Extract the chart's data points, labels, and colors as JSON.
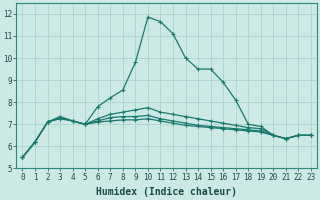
{
  "xlabel": "Humidex (Indice chaleur)",
  "background_color": "#cce9e5",
  "grid_color": "#aad4ce",
  "line_color": "#1a7a6e",
  "x_data": [
    0,
    1,
    2,
    3,
    4,
    5,
    6,
    7,
    8,
    9,
    10,
    11,
    12,
    13,
    14,
    15,
    16,
    17,
    18,
    19,
    20,
    21,
    22,
    23
  ],
  "series": [
    [
      5.5,
      6.2,
      7.1,
      7.3,
      7.15,
      7.0,
      7.8,
      8.2,
      8.55,
      9.8,
      11.85,
      11.65,
      11.1,
      10.0,
      9.5,
      9.5,
      8.9,
      8.1,
      7.0,
      6.9,
      6.5,
      6.35,
      6.5,
      6.5
    ],
    [
      5.5,
      6.2,
      7.1,
      7.35,
      7.15,
      7.0,
      7.25,
      7.45,
      7.55,
      7.65,
      7.75,
      7.55,
      7.45,
      7.35,
      7.25,
      7.15,
      7.05,
      6.95,
      6.85,
      6.8,
      6.5,
      6.35,
      6.5,
      6.5
    ],
    [
      5.5,
      6.2,
      7.1,
      7.3,
      7.15,
      7.0,
      7.15,
      7.3,
      7.35,
      7.35,
      7.4,
      7.25,
      7.15,
      7.05,
      6.95,
      6.9,
      6.85,
      6.8,
      6.75,
      6.7,
      6.5,
      6.35,
      6.5,
      6.5
    ],
    [
      5.5,
      6.2,
      7.1,
      7.25,
      7.15,
      7.0,
      7.1,
      7.15,
      7.2,
      7.2,
      7.25,
      7.15,
      7.05,
      6.95,
      6.9,
      6.85,
      6.8,
      6.75,
      6.7,
      6.65,
      6.5,
      6.35,
      6.5,
      6.5
    ]
  ],
  "ylim": [
    5,
    12.5
  ],
  "xlim": [
    -0.5,
    23.5
  ],
  "yticks": [
    5,
    6,
    7,
    8,
    9,
    10,
    11,
    12
  ],
  "xticks": [
    0,
    1,
    2,
    3,
    4,
    5,
    6,
    7,
    8,
    9,
    10,
    11,
    12,
    13,
    14,
    15,
    16,
    17,
    18,
    19,
    20,
    21,
    22,
    23
  ],
  "tick_fontsize": 5.5,
  "xlabel_fontsize": 7.0,
  "marker_size": 2.5,
  "line_width": 0.9
}
